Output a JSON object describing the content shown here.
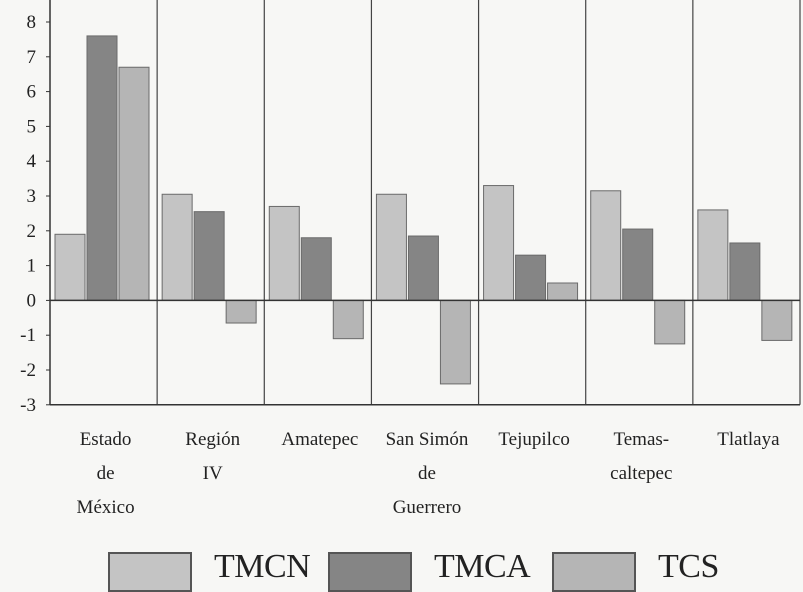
{
  "chart_data": {
    "type": "bar",
    "title": "",
    "xlabel": "",
    "ylabel": "",
    "ylim": [
      -3,
      8
    ],
    "yticks": [
      "8",
      "7",
      "6",
      "5",
      "4",
      "3",
      "2",
      "1",
      "0",
      "-1",
      "-2",
      "-3"
    ],
    "categories": [
      [
        "Estado",
        "de",
        "México"
      ],
      [
        "Región",
        "IV"
      ],
      [
        "Amatepec"
      ],
      [
        "San Simón",
        "de",
        "Guerrero"
      ],
      [
        "Tejupilco"
      ],
      [
        "Temas-",
        "caltepec"
      ],
      [
        "Tlatlaya"
      ]
    ],
    "series": [
      {
        "name": "TMCN",
        "color": "#c4c4c4",
        "values": [
          1.9,
          3.05,
          2.7,
          3.05,
          3.3,
          3.15,
          2.6
        ]
      },
      {
        "name": "TMCA",
        "color": "#858585",
        "values": [
          7.6,
          2.55,
          1.8,
          1.85,
          1.3,
          2.05,
          1.65
        ]
      },
      {
        "name": "TCS",
        "color": "#b5b5b5",
        "values": [
          6.7,
          -0.65,
          -1.1,
          -2.4,
          0.5,
          -1.25,
          -1.15
        ]
      }
    ],
    "grid": false,
    "legend": "bottom"
  }
}
